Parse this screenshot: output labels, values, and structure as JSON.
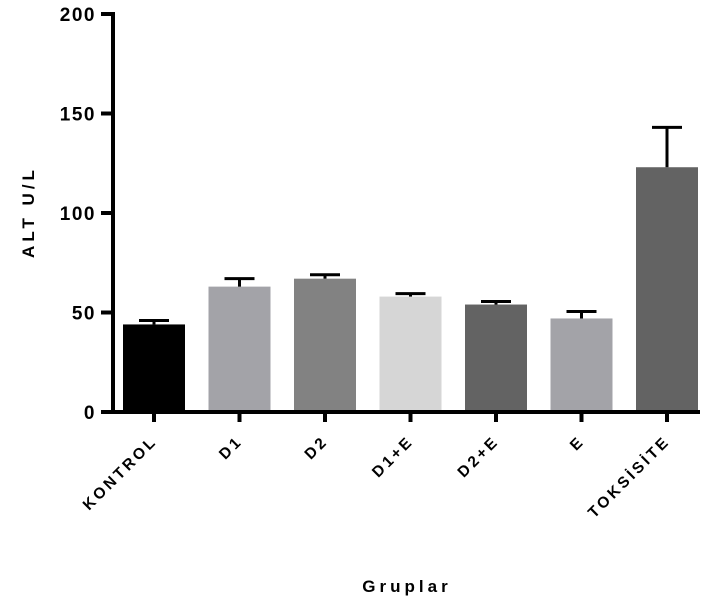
{
  "chart_data": {
    "type": "bar",
    "title": "",
    "xlabel": "Gruplar",
    "ylabel": "ALT U/L",
    "ylim": [
      0,
      200
    ],
    "yticks": [
      0,
      50,
      100,
      150,
      200
    ],
    "grid": false,
    "categories": [
      "KONTROL",
      "D1",
      "D2",
      "D1+E",
      "D2+E",
      "E",
      "TOKSİSİTE"
    ],
    "values": [
      44,
      63,
      67,
      58,
      54,
      47,
      123
    ],
    "errors": [
      2,
      4,
      2,
      1.5,
      1.5,
      3.5,
      20
    ],
    "colors": [
      "#000000",
      "#a3a3a8",
      "#828282",
      "#d6d6d6",
      "#636363",
      "#a3a3a8",
      "#636363"
    ]
  }
}
